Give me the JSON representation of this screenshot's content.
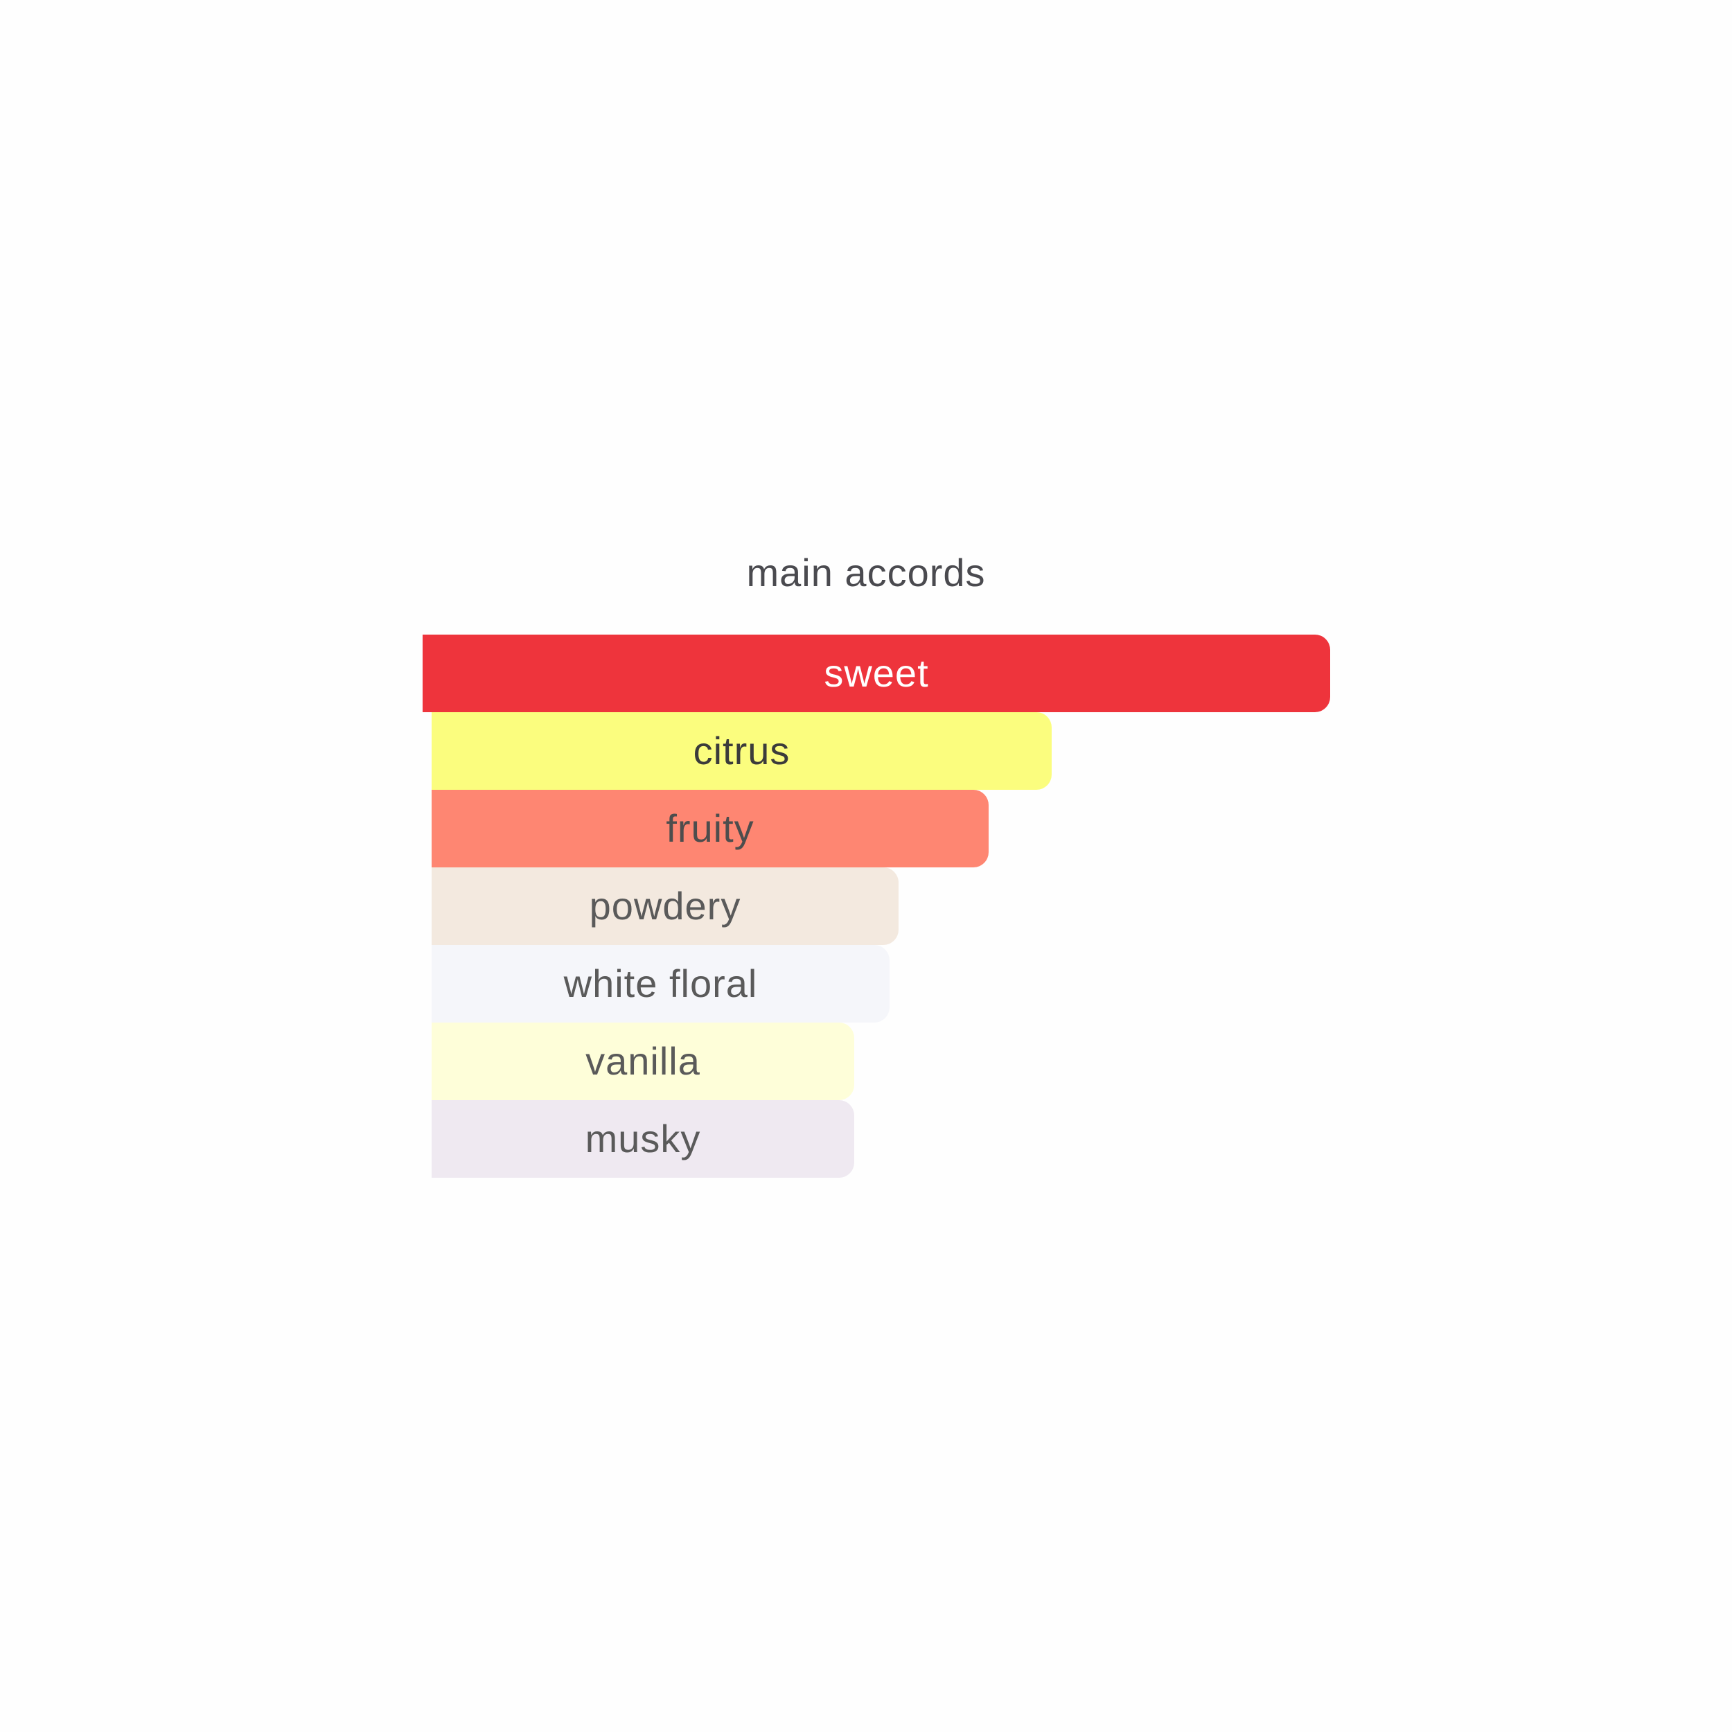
{
  "chart_data": {
    "type": "bar",
    "orientation": "horizontal",
    "title": "main accords",
    "categories": [
      "sweet",
      "citrus",
      "fruity",
      "powdery",
      "white floral",
      "vanilla",
      "musky"
    ],
    "values": [
      100,
      69,
      62,
      52,
      51,
      47,
      47
    ],
    "xlim": [
      0,
      100
    ],
    "grid": false,
    "legend": "none",
    "bar_colors": [
      "#ee343c",
      "#fbfd7e",
      "#fe8672",
      "#f3e9df",
      "#f5f6fa",
      "#fefed9",
      "#efe9f1"
    ],
    "label_colors": [
      "#ffffff",
      "#3b3b3b",
      "#4d4d4d",
      "#5a5a5a",
      "#5a5a5a",
      "#5a5a5a",
      "#5a5a5a"
    ]
  }
}
